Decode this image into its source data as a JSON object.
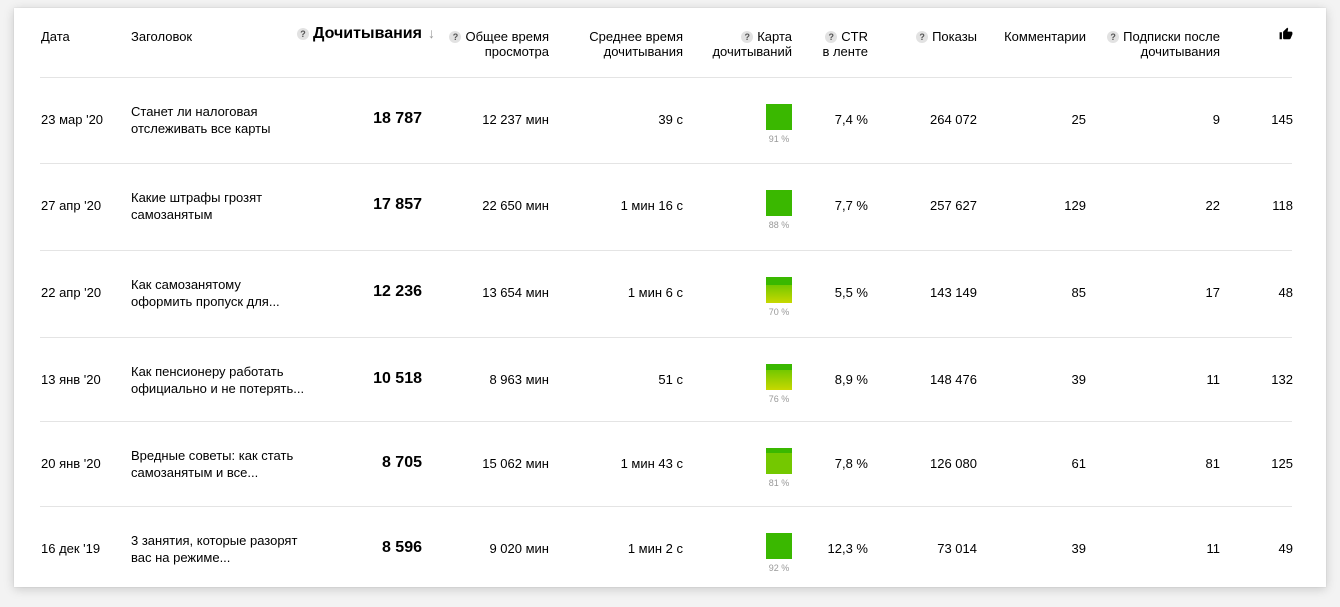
{
  "columns": {
    "date": "Дата",
    "title": "Заголовок",
    "reads": "Дочитывания",
    "total_time": [
      "Общее время",
      "просмотра"
    ],
    "avg_time": [
      "Среднее время",
      "дочитывания"
    ],
    "map": [
      "Карта",
      "дочитываний"
    ],
    "ctr": [
      "CTR",
      "в ленте"
    ],
    "shows": "Показы",
    "comments": "Комментарии",
    "subs": [
      "Подписки после",
      "дочитывания"
    ],
    "likes_icon": "thumbs-up-icon"
  },
  "help_glyph": "?",
  "sort_arrow": "↓",
  "rows": [
    {
      "date": "23 мар '20",
      "title": [
        "Станет ли налоговая",
        "отслеживать все карты"
      ],
      "reads": "18 787",
      "total_time": "12 237 мин",
      "avg_time": "39 с",
      "map_pct": "91 %",
      "map_value": 0.91,
      "ctr": "7,4 %",
      "shows": "264 072",
      "comments": "25",
      "subs": "9",
      "likes": "145"
    },
    {
      "date": "27 апр '20",
      "title": [
        "Какие штрафы грозят",
        "самозанятым"
      ],
      "reads": "17 857",
      "total_time": "22 650 мин",
      "avg_time": "1 мин 16 с",
      "map_pct": "88 %",
      "map_value": 0.88,
      "ctr": "7,7 %",
      "shows": "257 627",
      "comments": "129",
      "subs": "22",
      "likes": "118"
    },
    {
      "date": "22 апр '20",
      "title": [
        "Как самозанятому",
        "оформить пропуск для..."
      ],
      "reads": "12 236",
      "total_time": "13 654 мин",
      "avg_time": "1 мин 6 с",
      "map_pct": "70 %",
      "map_value": 0.7,
      "ctr": "5,5 %",
      "shows": "143 149",
      "comments": "85",
      "subs": "17",
      "likes": "48"
    },
    {
      "date": "13 янв '20",
      "title": [
        "Как пенсионеру работать",
        "официально и не потерять..."
      ],
      "reads": "10 518",
      "total_time": "8 963 мин",
      "avg_time": "51 с",
      "map_pct": "76 %",
      "map_value": 0.76,
      "ctr": "8,9 %",
      "shows": "148 476",
      "comments": "39",
      "subs": "11",
      "likes": "132"
    },
    {
      "date": "20 янв '20",
      "title": [
        "Вредные советы: как стать",
        "самозанятым и все..."
      ],
      "reads": "8 705",
      "total_time": "15 062 мин",
      "avg_time": "1 мин 43 с",
      "map_pct": "81 %",
      "map_value": 0.81,
      "ctr": "7,8 %",
      "shows": "126 080",
      "comments": "61",
      "subs": "81",
      "likes": "125"
    },
    {
      "date": "16 дек '19",
      "title": [
        "3 занятия, которые разорят",
        "вас на режиме..."
      ],
      "reads": "8 596",
      "total_time": "9 020 мин",
      "avg_time": "1 мин 2 с",
      "map_pct": "92 %",
      "map_value": 0.92,
      "ctr": "12,3 %",
      "shows": "73 014",
      "comments": "39",
      "subs": "11",
      "likes": "49"
    }
  ],
  "colors": {
    "green_high": "#3ab800",
    "green_mid": "#74c800",
    "yellow": "#c7d800"
  }
}
